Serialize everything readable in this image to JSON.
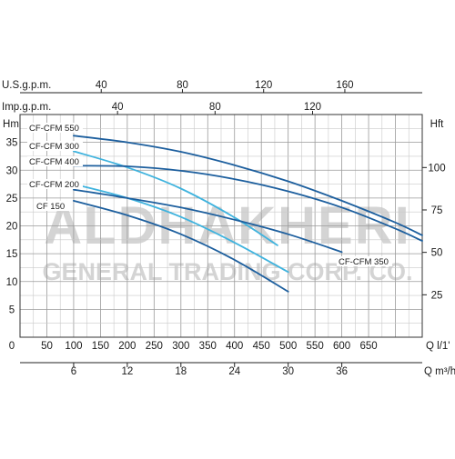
{
  "chart_data": {
    "type": "line",
    "xlabel": "Q l/1'",
    "ylabel": "Hm",
    "ylabel_right": "Hft",
    "x_axis_m3h_label": "Q m³/h",
    "top_axis_usgpm_label": "U.S.g.p.m.",
    "top_axis_impgpm_label": "Imp.g.p.m.",
    "xlim": [
      0,
      750
    ],
    "ylim": [
      0,
      40
    ],
    "x_ticks": [
      "0",
      "50",
      "100",
      "150",
      "200",
      "250",
      "300",
      "350",
      "400",
      "450",
      "500",
      "550",
      "600",
      "650"
    ],
    "y_ticks": [
      "5",
      "10",
      "15",
      "20",
      "25",
      "30",
      "35"
    ],
    "y_ticks_right": [
      "25",
      "50",
      "75",
      "100"
    ],
    "x_ticks_m3h": [
      "6",
      "12",
      "18",
      "24",
      "30",
      "36"
    ],
    "top_ticks_usgpm": [
      "40",
      "80",
      "120",
      "160"
    ],
    "top_ticks_impgpm": [
      "40",
      "80",
      "120"
    ],
    "watermark": [
      "ALDHAKHERI",
      "GENERAL TRADING CORP. CO."
    ],
    "series": [
      {
        "name": "CF-CFM 550",
        "color": "#1d5f9e",
        "x": [
          100,
          200,
          300,
          400,
          500,
          600,
          700,
          750
        ],
        "y": [
          36.2,
          35.0,
          33.3,
          30.9,
          28.0,
          24.5,
          20.6,
          18.3
        ]
      },
      {
        "name": "CF-CFM 300",
        "color": "#3fb3de",
        "x": [
          100,
          200,
          300,
          400,
          480
        ],
        "y": [
          33.4,
          30.5,
          26.7,
          21.5,
          16.5
        ]
      },
      {
        "name": "CF-CFM 400",
        "color": "#1d5f9e",
        "x": [
          100,
          200,
          300,
          400,
          500,
          600,
          700,
          750
        ],
        "y": [
          30.8,
          30.7,
          29.9,
          28.4,
          26.2,
          23.3,
          19.5,
          17.3
        ]
      },
      {
        "name": "CF-CFM 200",
        "color": "#3fb3de",
        "x": [
          100,
          200,
          300,
          400,
          500
        ],
        "y": [
          27.5,
          25.0,
          21.6,
          17.0,
          11.7
        ]
      },
      {
        "name": "CF 150",
        "color": "#1d5f9e",
        "x": [
          100,
          200,
          300,
          400,
          500
        ],
        "y": [
          24.5,
          21.9,
          18.5,
          13.9,
          8.2
        ]
      },
      {
        "name": "CF-CFM 350",
        "color": "#1d5f9e",
        "x": [
          100,
          200,
          300,
          400,
          500,
          600
        ],
        "y": [
          26.5,
          25.0,
          23.3,
          21.1,
          18.5,
          15.3
        ]
      }
    ]
  }
}
